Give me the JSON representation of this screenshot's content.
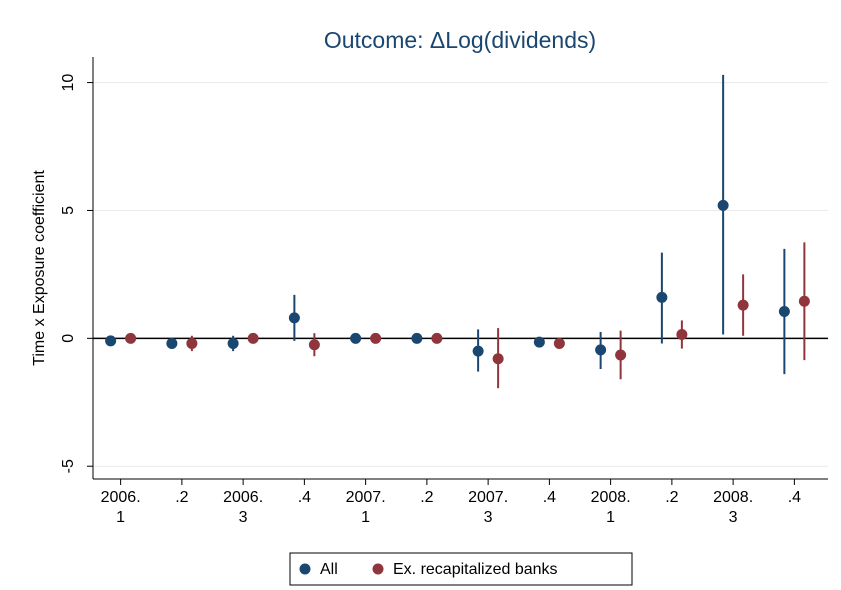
{
  "chart_data": {
    "type": "errorbar",
    "title": "Outcome: ΔLog(dividends)",
    "y_label": "Time x Exposure coefficient",
    "categories": [
      [
        "2006.",
        "1"
      ],
      [
        ".2"
      ],
      [
        "2006.",
        "3"
      ],
      [
        ".4"
      ],
      [
        "2007.",
        "1"
      ],
      [
        ".2"
      ],
      [
        "2007.",
        "3"
      ],
      [
        ".4"
      ],
      [
        "2008.",
        "1"
      ],
      [
        ".2"
      ],
      [
        "2008.",
        "3"
      ],
      [
        ".4"
      ]
    ],
    "series": [
      {
        "name": "All",
        "color": "#1a476f",
        "values": [
          -0.1,
          -0.2,
          -0.2,
          0.8,
          0.0,
          0.0,
          -0.5,
          -0.15,
          -0.45,
          1.6,
          5.2,
          1.05
        ],
        "lower": [
          -0.3,
          -0.4,
          -0.5,
          -0.1,
          -0.1,
          -0.1,
          -1.3,
          -0.3,
          -1.2,
          -0.2,
          0.15,
          -1.4
        ],
        "upper": [
          0.1,
          0.0,
          0.1,
          1.7,
          0.1,
          0.1,
          0.35,
          0.0,
          0.25,
          3.35,
          10.3,
          3.5
        ]
      },
      {
        "name": "Ex. recapitalized banks",
        "color": "#90353b",
        "values": [
          0.0,
          -0.2,
          0.0,
          -0.25,
          0.0,
          0.0,
          -0.8,
          -0.2,
          -0.65,
          0.15,
          1.3,
          1.45
        ],
        "lower": [
          -0.1,
          -0.5,
          -0.1,
          -0.7,
          -0.1,
          -0.1,
          -1.95,
          -0.4,
          -1.6,
          -0.4,
          0.1,
          -0.85
        ],
        "upper": [
          0.1,
          0.1,
          0.1,
          0.2,
          0.1,
          0.1,
          0.4,
          0.0,
          0.3,
          0.7,
          2.5,
          3.75
        ]
      }
    ],
    "ylim": [
      -5.5,
      11
    ],
    "yticks": [
      -5,
      0,
      5,
      10
    ],
    "grid": true,
    "reference_line": 0,
    "legend": "bottom"
  }
}
